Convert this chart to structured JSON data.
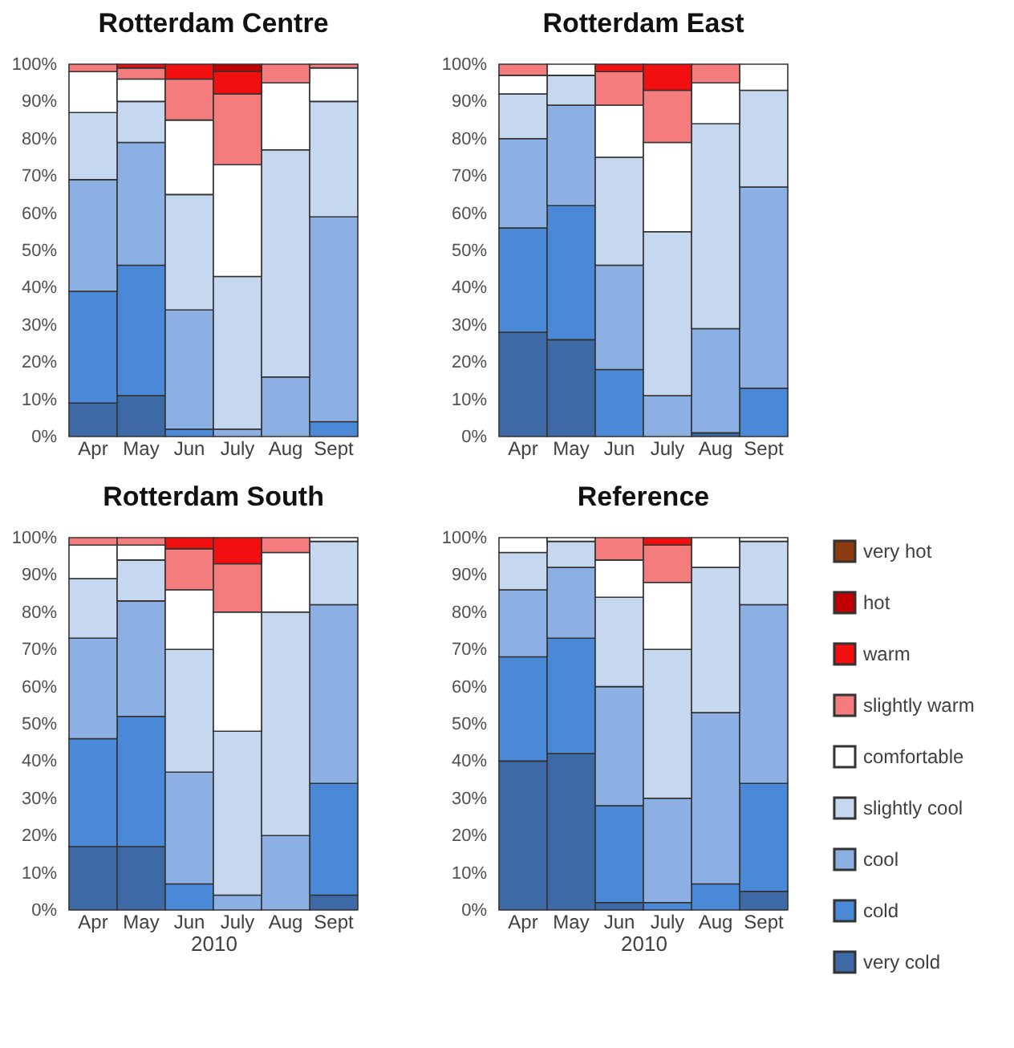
{
  "chart_data": [
    {
      "type": "bar",
      "title": "Rotterdam Centre",
      "stacked": true,
      "legend": "right",
      "categories": [
        "Apr",
        "May",
        "Jun",
        "July",
        "Aug",
        "Sept"
      ],
      "ylim": [
        0,
        100
      ],
      "yticks": [
        {
          "value": 0,
          "label": "0%"
        },
        {
          "value": 10,
          "label": "10%"
        },
        {
          "value": 20,
          "label": "20%"
        },
        {
          "value": 30,
          "label": "30%"
        },
        {
          "value": 40,
          "label": "40%"
        },
        {
          "value": 50,
          "label": "50%"
        },
        {
          "value": 60,
          "label": "60%"
        },
        {
          "value": 70,
          "label": "70%"
        },
        {
          "value": 80,
          "label": "80%"
        },
        {
          "value": 90,
          "label": "90%"
        },
        {
          "value": 100,
          "label": "100%"
        }
      ],
      "series": [
        {
          "name": "very cold",
          "color": "#3d6aa6",
          "values": [
            9,
            11,
            null,
            null,
            null,
            null
          ]
        },
        {
          "name": "cold",
          "color": "#4a88d8",
          "values": [
            30,
            35,
            2,
            null,
            null,
            4
          ]
        },
        {
          "name": "cool",
          "color": "#8cb0e4",
          "values": [
            30,
            33,
            32,
            2,
            16,
            55
          ]
        },
        {
          "name": "slightly cool",
          "color": "#c6d7f0",
          "values": [
            18,
            11,
            31,
            41,
            61,
            31
          ]
        },
        {
          "name": "comfortable",
          "color": "#ffffff",
          "values": [
            11,
            6,
            20,
            30,
            18,
            9
          ]
        },
        {
          "name": "slightly warm",
          "color": "#f47c7c",
          "values": [
            2,
            3,
            11,
            19,
            5,
            1
          ]
        },
        {
          "name": "warm",
          "color": "#f20f0f",
          "values": [
            null,
            1,
            4,
            6,
            null,
            null
          ]
        },
        {
          "name": "hot",
          "color": "#c00000",
          "values": [
            null,
            null,
            null,
            2,
            null,
            null
          ]
        },
        {
          "name": "very hot",
          "color": "#8c3a12",
          "values": [
            null,
            null,
            null,
            null,
            null,
            null
          ]
        }
      ]
    },
    {
      "type": "bar",
      "title": "Rotterdam East",
      "stacked": true,
      "legend": "right",
      "categories": [
        "Apr",
        "May",
        "Jun",
        "July",
        "Aug",
        "Sept"
      ],
      "ylim": [
        0,
        100
      ],
      "yticks": [
        {
          "value": 0,
          "label": "0%"
        },
        {
          "value": 10,
          "label": "10%"
        },
        {
          "value": 20,
          "label": "20%"
        },
        {
          "value": 30,
          "label": "30%"
        },
        {
          "value": 40,
          "label": "40%"
        },
        {
          "value": 50,
          "label": "50%"
        },
        {
          "value": 60,
          "label": "60%"
        },
        {
          "value": 70,
          "label": "70%"
        },
        {
          "value": 80,
          "label": "80%"
        },
        {
          "value": 90,
          "label": "90%"
        },
        {
          "value": 100,
          "label": "100%"
        }
      ],
      "series": [
        {
          "name": "very cold",
          "color": "#3d6aa6",
          "values": [
            28,
            26,
            null,
            null,
            1,
            null
          ]
        },
        {
          "name": "cold",
          "color": "#4a88d8",
          "values": [
            28,
            36,
            18,
            null,
            null,
            13
          ]
        },
        {
          "name": "cool",
          "color": "#8cb0e4",
          "values": [
            24,
            27,
            28,
            11,
            28,
            54
          ]
        },
        {
          "name": "slightly cool",
          "color": "#c6d7f0",
          "values": [
            12,
            8,
            29,
            44,
            55,
            26
          ]
        },
        {
          "name": "comfortable",
          "color": "#ffffff",
          "values": [
            5,
            3,
            14,
            24,
            11,
            7
          ]
        },
        {
          "name": "slightly warm",
          "color": "#f47c7c",
          "values": [
            3,
            null,
            9,
            14,
            5,
            null
          ]
        },
        {
          "name": "warm",
          "color": "#f20f0f",
          "values": [
            null,
            null,
            2,
            7,
            null,
            null
          ]
        },
        {
          "name": "hot",
          "color": "#c00000",
          "values": [
            null,
            null,
            null,
            null,
            null,
            null
          ]
        }
      ]
    },
    {
      "type": "bar",
      "title": "Rotterdam South",
      "xlabel": "2010",
      "stacked": true,
      "legend": "right",
      "categories": [
        "Apr",
        "May",
        "Jun",
        "July",
        "Aug",
        "Sept"
      ],
      "ylim": [
        0,
        100
      ],
      "yticks": [
        {
          "value": 0,
          "label": "0%"
        },
        {
          "value": 10,
          "label": "10%"
        },
        {
          "value": 20,
          "label": "20%"
        },
        {
          "value": 30,
          "label": "30%"
        },
        {
          "value": 40,
          "label": "40%"
        },
        {
          "value": 50,
          "label": "50%"
        },
        {
          "value": 60,
          "label": "60%"
        },
        {
          "value": 70,
          "label": "70%"
        },
        {
          "value": 80,
          "label": "80%"
        },
        {
          "value": 90,
          "label": "90%"
        },
        {
          "value": 100,
          "label": "100%"
        }
      ],
      "series": [
        {
          "name": "very cold",
          "color": "#3d6aa6",
          "values": [
            17,
            17,
            null,
            null,
            null,
            4
          ]
        },
        {
          "name": "cold",
          "color": "#4a88d8",
          "values": [
            29,
            35,
            7,
            null,
            null,
            30
          ]
        },
        {
          "name": "cool",
          "color": "#8cb0e4",
          "values": [
            27,
            31,
            30,
            4,
            20,
            48
          ]
        },
        {
          "name": "slightly cool",
          "color": "#c6d7f0",
          "values": [
            16,
            11,
            33,
            44,
            60,
            17
          ]
        },
        {
          "name": "comfortable",
          "color": "#ffffff",
          "values": [
            9,
            4,
            16,
            32,
            16,
            1
          ]
        },
        {
          "name": "slightly warm",
          "color": "#f47c7c",
          "values": [
            2,
            2,
            11,
            13,
            4,
            null
          ]
        },
        {
          "name": "warm",
          "color": "#f20f0f",
          "values": [
            null,
            null,
            3,
            7,
            null,
            null
          ]
        },
        {
          "name": "hot",
          "color": "#c00000",
          "values": [
            null,
            null,
            null,
            null,
            null,
            null
          ]
        }
      ]
    },
    {
      "type": "bar",
      "title": "Reference",
      "xlabel": "2010",
      "stacked": true,
      "legend": "right",
      "categories": [
        "Apr",
        "May",
        "Jun",
        "July",
        "Aug",
        "Sept"
      ],
      "ylim": [
        0,
        100
      ],
      "yticks": [
        {
          "value": 0,
          "label": "0%"
        },
        {
          "value": 10,
          "label": "10%"
        },
        {
          "value": 20,
          "label": "20%"
        },
        {
          "value": 30,
          "label": "30%"
        },
        {
          "value": 40,
          "label": "40%"
        },
        {
          "value": 50,
          "label": "50%"
        },
        {
          "value": 60,
          "label": "60%"
        },
        {
          "value": 70,
          "label": "70%"
        },
        {
          "value": 80,
          "label": "80%"
        },
        {
          "value": 90,
          "label": "90%"
        },
        {
          "value": 100,
          "label": "100%"
        }
      ],
      "series": [
        {
          "name": "very cold",
          "color": "#3d6aa6",
          "values": [
            40,
            42,
            2,
            null,
            null,
            5
          ]
        },
        {
          "name": "cold",
          "color": "#4a88d8",
          "values": [
            28,
            31,
            26,
            2,
            7,
            29
          ]
        },
        {
          "name": "cool",
          "color": "#8cb0e4",
          "values": [
            18,
            19,
            32,
            28,
            46,
            48
          ]
        },
        {
          "name": "slightly cool",
          "color": "#c6d7f0",
          "values": [
            10,
            7,
            24,
            40,
            39,
            17
          ]
        },
        {
          "name": "comfortable",
          "color": "#ffffff",
          "values": [
            4,
            1,
            10,
            18,
            8,
            1
          ]
        },
        {
          "name": "slightly warm",
          "color": "#f47c7c",
          "values": [
            null,
            null,
            6,
            10,
            null,
            null
          ]
        },
        {
          "name": "warm",
          "color": "#f20f0f",
          "values": [
            null,
            null,
            null,
            2,
            null,
            null
          ]
        },
        {
          "name": "hot",
          "color": "#c00000",
          "values": [
            null,
            null,
            null,
            null,
            null,
            null
          ]
        }
      ]
    }
  ]
}
